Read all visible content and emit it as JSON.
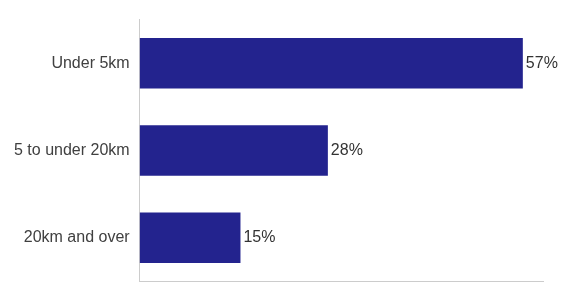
{
  "chart_data": {
    "type": "bar",
    "orientation": "horizontal",
    "categories": [
      "Under 5km",
      "5 to under 20km",
      "20km and over"
    ],
    "values": [
      57,
      28,
      15
    ],
    "value_labels": [
      "57%",
      "28%",
      "15%"
    ],
    "data_labels": true,
    "color": "#23238e",
    "xlim": [
      0,
      60
    ],
    "grid": false,
    "tick_labels": "y"
  }
}
